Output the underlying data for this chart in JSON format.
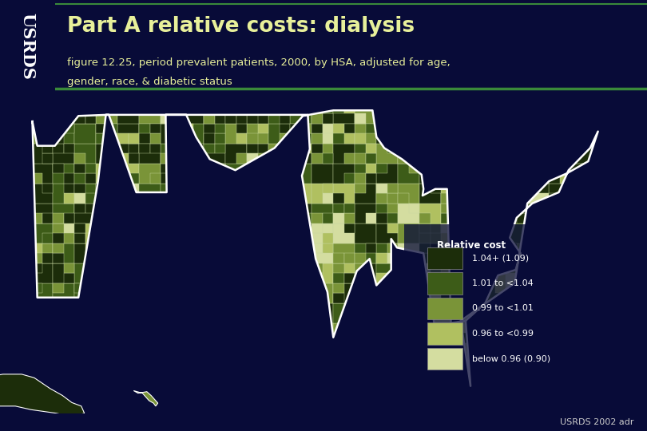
{
  "title": "Part A relative costs: dialysis",
  "subtitle_line1": "figure 12.25, period prevalent patients, 2000, by HSA, adjusted for age,",
  "subtitle_line2": "gender, race, & diabetic status",
  "usrds_label": "USRDS",
  "footer": "USRDS 2002 adr",
  "background_color": "#080b38",
  "header_bg_color": "#080b38",
  "usrds_bg_color": "#1e5e1e",
  "usrds_border_color": "#3a8a3a",
  "title_color": "#e8f09a",
  "subtitle_color": "#e8f09a",
  "footer_color": "#cccccc",
  "legend_title": "Relative cost",
  "legend_labels": [
    "1.04+ (1.09)",
    "1.01 to <1.04",
    "0.99 to <1.01",
    "0.96 to <0.99",
    "below 0.96 (0.90)"
  ],
  "legend_colors": [
    "#1c2d0a",
    "#3d5c18",
    "#7a9438",
    "#b0c060",
    "#d4dda0"
  ],
  "map_colors": [
    "#1c2d0a",
    "#3d5c18",
    "#7a9438",
    "#b0c060",
    "#d4dda0"
  ],
  "legend_text_color": "#ffffff",
  "legend_title_color": "#ffffff",
  "state_edge_color": "#ffffff",
  "header_divider_color": "#3a8a3a",
  "county_edge_color": "#c8d8a0",
  "state_outline_color": "#ffffff"
}
